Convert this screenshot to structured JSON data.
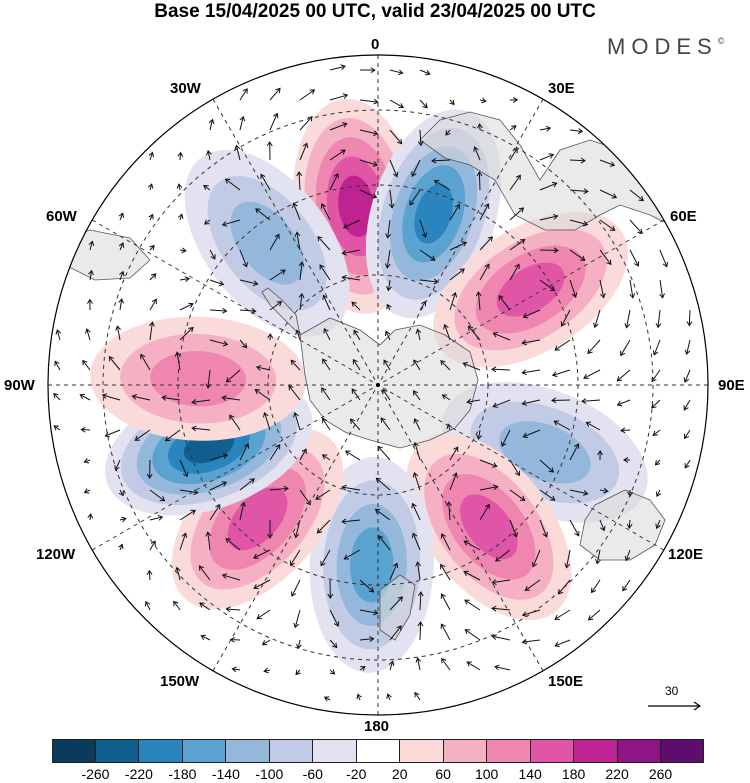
{
  "title": "Base 15/04/2025 00 UTC, valid 23/04/2025 00 UTC",
  "brand": {
    "name": "MODES",
    "mark": "©"
  },
  "map": {
    "projection": "south-polar-stereographic",
    "longitude_labels": {
      "top": "0",
      "top_right": "30E",
      "upper_right": "60E",
      "right": "90E",
      "lower_right": "120E",
      "bottom_right": "150E",
      "bottom": "180",
      "bottom_left": "150W",
      "lower_left": "120W",
      "left": "90W",
      "upper_left": "60W",
      "top_left": "30W"
    },
    "wind_reference": "30",
    "anomaly_centers": [
      {
        "sign": "positive",
        "magnitude": 200,
        "bearing_deg": 353
      },
      {
        "sign": "negative",
        "magnitude": 180,
        "bearing_deg": 18
      },
      {
        "sign": "positive",
        "magnitude": 140,
        "bearing_deg": 58
      },
      {
        "sign": "negative",
        "magnitude": 100,
        "bearing_deg": 112
      },
      {
        "sign": "positive",
        "magnitude": 160,
        "bearing_deg": 142
      },
      {
        "sign": "negative",
        "magnitude": 160,
        "bearing_deg": 182
      },
      {
        "sign": "positive",
        "magnitude": 140,
        "bearing_deg": 222
      },
      {
        "sign": "negative",
        "magnitude": 220,
        "bearing_deg": 250
      },
      {
        "sign": "positive",
        "magnitude": 120,
        "bearing_deg": 272
      },
      {
        "sign": "negative",
        "magnitude": 100,
        "bearing_deg": 322
      }
    ]
  },
  "colorbar": {
    "colors": [
      "#0a3a5c",
      "#125f8f",
      "#2a84bd",
      "#5aa2cf",
      "#93b8dc",
      "#c2cbe6",
      "#e2e2f1",
      "#ffffff",
      "#fbdada",
      "#f5b0c4",
      "#ee86b0",
      "#e055a5",
      "#bf2392",
      "#8e1583",
      "#5e0d6f"
    ],
    "ticks": [
      "-260",
      "-220",
      "-180",
      "-140",
      "-100",
      "-60",
      "-20",
      "20",
      "60",
      "100",
      "140",
      "180",
      "220",
      "260"
    ]
  }
}
